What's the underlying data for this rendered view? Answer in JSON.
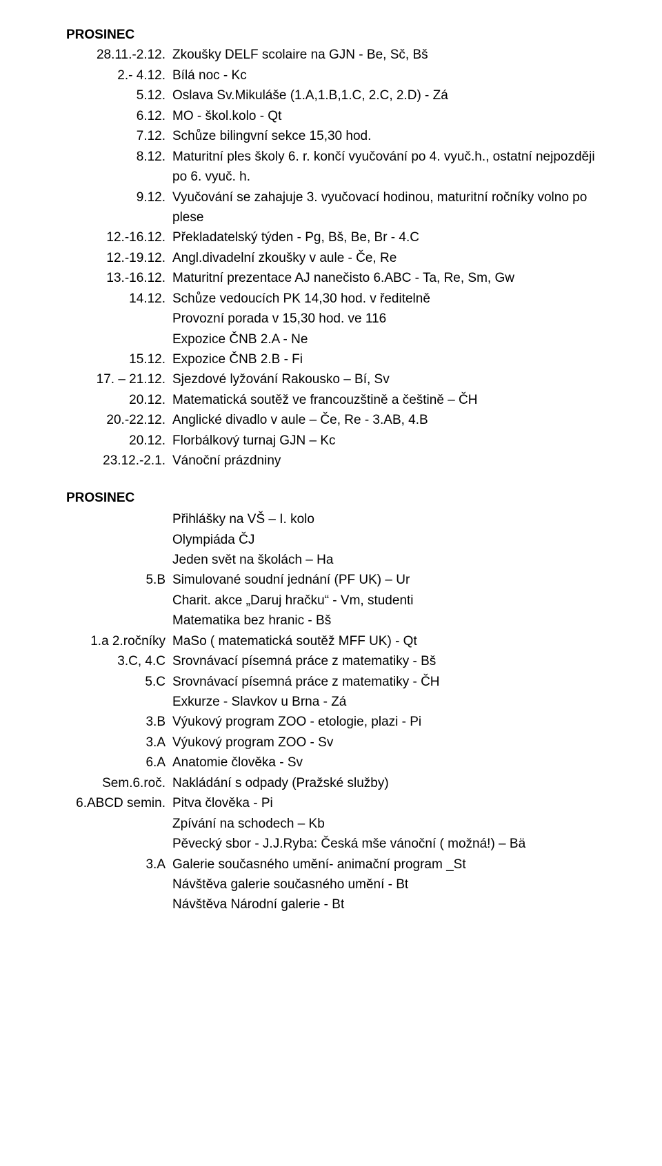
{
  "colors": {
    "text": "#000000",
    "background": "#ffffff"
  },
  "typography": {
    "font_family": "Arial, Helvetica, sans-serif",
    "font_size_pt": 14,
    "line_height": 1.55
  },
  "section1_heading": "PROSINEC",
  "section1": [
    {
      "date": "28.11.-2.12.",
      "text": "Zkoušky DELF scolaire na GJN - Be, Sč, Bš"
    },
    {
      "date": "2.- 4.12.",
      "text": "Bílá noc - Kc"
    },
    {
      "date": "5.12.",
      "text": "Oslava Sv.Mikuláše (1.A,1.B,1.C, 2.C, 2.D) - Zá"
    },
    {
      "date": "6.12.",
      "text": "MO - škol.kolo - Qt"
    },
    {
      "date": "7.12.",
      "text": "Schůze bilingvní sekce 15,30 hod."
    },
    {
      "date": "8.12.",
      "text": "Maturitní ples školy 6. r. končí vyučování po 4. vyuč.h., ostatní nejpozději po 6. vyuč. h."
    },
    {
      "date": "9.12.",
      "text": "Vyučování se zahajuje 3. vyučovací hodinou, maturitní ročníky volno po plese"
    },
    {
      "date": "12.-16.12.",
      "text": "Překladatelský týden - Pg, Bš, Be, Br -  4.C"
    },
    {
      "date": "12.-19.12.",
      "text": "Angl.divadelní zkoušky v aule - Če, Re"
    },
    {
      "date": "13.-16.12.",
      "text": "Maturitní prezentace  AJ nanečisto 6.ABC - Ta, Re, Sm, Gw"
    },
    {
      "date": "14.12.",
      "text": "Schůze vedoucích PK 14,30 hod. v ředitelně"
    },
    {
      "date": "",
      "text": "Provozní porada v 15,30 hod. ve 116"
    },
    {
      "date": "",
      "text": "Expozice ČNB 2.A - Ne"
    },
    {
      "date": "15.12.",
      "text": "Expozice ČNB 2.B - Fi"
    },
    {
      "date": "17. – 21.12.",
      "text": "Sjezdové lyžování Rakousko – Bí, Sv"
    },
    {
      "date": "20.12.",
      "text": "Matematická soutěž ve francouzštině a češtině – ČH"
    },
    {
      "date": "20.-22.12.",
      "text": "Anglické divadlo v aule – Če, Re - 3.AB, 4.B"
    },
    {
      "date": "20.12.",
      "text": "Florbálkový turnaj GJN – Kc"
    },
    {
      "date": "23.12.-2.1.",
      "text": "Vánoční prázdniny"
    }
  ],
  "section2_heading": "PROSINEC",
  "section2": [
    {
      "date": "",
      "text": "Přihlášky na VŠ – I. kolo"
    },
    {
      "date": "",
      "text": "Olympiáda ČJ"
    },
    {
      "date": "",
      "text": "Jeden svět na školách – Ha"
    },
    {
      "date": "5.B",
      "text": "Simulované soudní jednání (PF UK) – Ur"
    },
    {
      "date": "",
      "text": "Charit. akce „Daruj hračku“ - Vm, studenti"
    },
    {
      "date": "",
      "text": "Matematika bez hranic - Bš"
    },
    {
      "date": "1.a 2.ročníky",
      "text": "MaSo ( matematická soutěž MFF UK) - Qt"
    },
    {
      "date": "3.C, 4.C",
      "text": "Srovnávací písemná práce z matematiky - Bš"
    },
    {
      "date": "5.C",
      "text": "Srovnávací písemná práce z matematiky - ČH"
    },
    {
      "date": "",
      "text": "Exkurze - Slavkov u Brna - Zá"
    },
    {
      "date": "3.B",
      "text": "Výukový program ZOO - etologie, plazi - Pi"
    },
    {
      "date": "3.A",
      "text": "Výukový program ZOO - Sv"
    },
    {
      "date": "6.A",
      "text": "Anatomie člověka - Sv"
    },
    {
      "date": "Sem.6.roč.",
      "text": "Nakládání s odpady (Pražské služby)"
    },
    {
      "date": "6.ABCD semin.",
      "text": "Pitva člověka - Pi"
    },
    {
      "date": "",
      "text": "Zpívání na schodech – Kb"
    },
    {
      "date": "",
      "text": "Pěvecký sbor -  J.J.Ryba: Česká mše vánoční ( možná!) – Bä"
    },
    {
      "date": "3.A",
      "text": "Galerie současného umění- animační program _St"
    },
    {
      "date": "",
      "text": "Návštěva galerie současného umění - Bt"
    },
    {
      "date": "",
      "text": "Návštěva Národní  galerie - Bt"
    }
  ]
}
